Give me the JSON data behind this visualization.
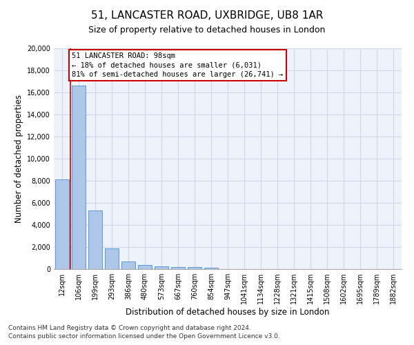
{
  "title": "51, LANCASTER ROAD, UXBRIDGE, UB8 1AR",
  "subtitle": "Size of property relative to detached houses in London",
  "xlabel": "Distribution of detached houses by size in London",
  "ylabel": "Number of detached properties",
  "categories": [
    "12sqm",
    "106sqm",
    "199sqm",
    "293sqm",
    "386sqm",
    "480sqm",
    "573sqm",
    "667sqm",
    "760sqm",
    "854sqm",
    "947sqm",
    "1041sqm",
    "1134sqm",
    "1228sqm",
    "1321sqm",
    "1415sqm",
    "1508sqm",
    "1602sqm",
    "1695sqm",
    "1789sqm",
    "1882sqm"
  ],
  "values": [
    8100,
    16600,
    5300,
    1850,
    700,
    350,
    270,
    210,
    200,
    150,
    0,
    0,
    0,
    0,
    0,
    0,
    0,
    0,
    0,
    0,
    0
  ],
  "bar_color": "#aec6e8",
  "bar_edge_color": "#5b9bd5",
  "annotation_line1": "51 LANCASTER ROAD: 98sqm",
  "annotation_line2": "← 18% of detached houses are smaller (6,031)",
  "annotation_line3": "81% of semi-detached houses are larger (26,741) →",
  "annotation_box_color": "#cc0000",
  "vline_color": "#cc0000",
  "grid_color": "#d0d8e8",
  "background_color": "#eef2fb",
  "ylim": [
    0,
    20000
  ],
  "yticks": [
    0,
    2000,
    4000,
    6000,
    8000,
    10000,
    12000,
    14000,
    16000,
    18000,
    20000
  ],
  "footnote_line1": "Contains HM Land Registry data © Crown copyright and database right 2024.",
  "footnote_line2": "Contains public sector information licensed under the Open Government Licence v3.0.",
  "title_fontsize": 11,
  "subtitle_fontsize": 9,
  "xlabel_fontsize": 8.5,
  "ylabel_fontsize": 8.5,
  "tick_fontsize": 7,
  "footnote_fontsize": 6.5,
  "annotation_fontsize": 7.5
}
